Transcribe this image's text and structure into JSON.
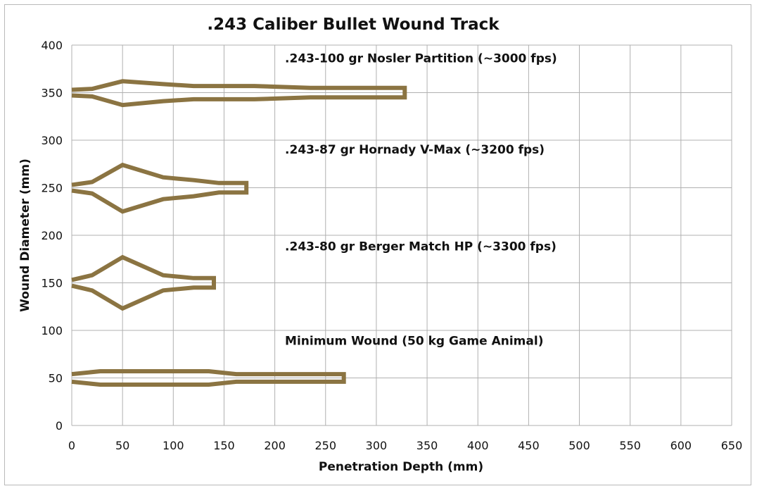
{
  "chart_data": {
    "type": "line",
    "title": ".243 Caliber Bullet Wound Track",
    "xlabel": "Penetration Depth (mm)",
    "ylabel": "Wound Diameter (mm)",
    "xlim": [
      0,
      650
    ],
    "ylim": [
      0,
      400
    ],
    "x_ticks": [
      "0",
      "50",
      "100",
      "150",
      "200",
      "250",
      "300",
      "350",
      "400",
      "450",
      "500",
      "550",
      "600",
      "650"
    ],
    "y_ticks": [
      "0",
      "50",
      "100",
      "150",
      "200",
      "250",
      "300",
      "350",
      "400"
    ],
    "grid": true,
    "line_color": "#8b7442",
    "series": [
      {
        "name": ".243-100 gr Nosler Partition (~3000 fps)",
        "x": [
          0,
          20,
          50,
          90,
          120,
          180,
          235,
          328,
          328,
          235,
          180,
          120,
          90,
          50,
          20,
          0
        ],
        "y": [
          353,
          354,
          362,
          359,
          357,
          357,
          355,
          355,
          345,
          345,
          343,
          343,
          341,
          337,
          346,
          347
        ]
      },
      {
        "name": ".243-87 gr Hornady V-Max (~3200 fps)",
        "x": [
          0,
          20,
          50,
          90,
          120,
          145,
          172,
          172,
          145,
          120,
          90,
          50,
          20,
          0
        ],
        "y": [
          253,
          256,
          274,
          261,
          258,
          255,
          255,
          245,
          245,
          241,
          238,
          225,
          244,
          247
        ]
      },
      {
        "name": ".243-80 gr Berger Match HP (~3300 fps)",
        "x": [
          0,
          20,
          50,
          90,
          120,
          140,
          140,
          120,
          90,
          50,
          20,
          0
        ],
        "y": [
          153,
          158,
          177,
          158,
          155,
          155,
          145,
          145,
          142,
          123,
          142,
          147
        ]
      },
      {
        "name": "Minimum Wound (50 kg Game Animal)",
        "x": [
          0,
          28,
          135,
          162,
          268,
          268,
          162,
          135,
          28,
          0
        ],
        "y": [
          54,
          57,
          57,
          54,
          54,
          46,
          46,
          43,
          43,
          46
        ]
      }
    ],
    "annotations": [
      {
        "text": ".243-100 gr Nosler Partition (~3000 fps)",
        "x": 210,
        "y": 382
      },
      {
        "text": ".243-87 gr Hornady V-Max (~3200 fps)",
        "x": 210,
        "y": 286
      },
      {
        "text": ".243-80 gr Berger Match HP (~3300 fps)",
        "x": 210,
        "y": 184
      },
      {
        "text": "Minimum Wound (50 kg Game Animal)",
        "x": 210,
        "y": 85
      }
    ]
  }
}
